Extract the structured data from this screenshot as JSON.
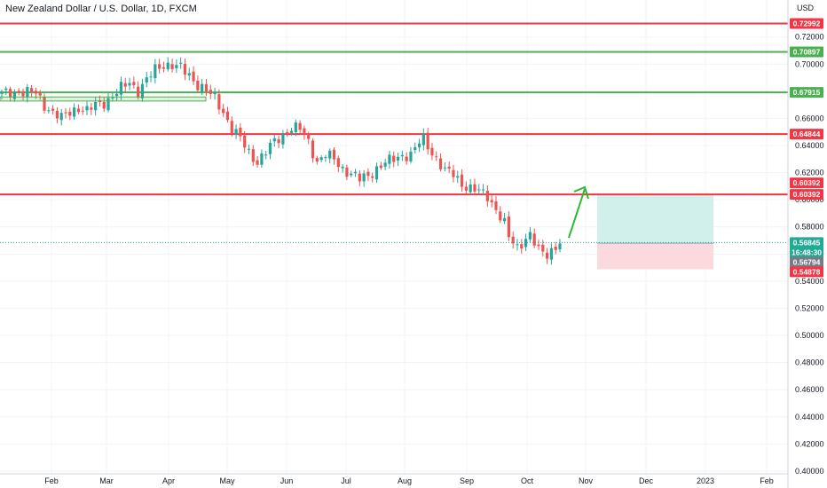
{
  "header": {
    "symbol_title": "New Zealand Dollar / U.S. Dollar, 1D, FXCM",
    "currency": "USD"
  },
  "colors": {
    "up": "#26a69a",
    "down": "#ef5350",
    "resistance": "#f23645",
    "support": "#4caf50",
    "target_zone": "#d1f0eb",
    "stop_zone": "#fcd9dc",
    "current_price_tag": "#22ab94",
    "countdown_tag": "#131722",
    "prev_close_tag": "#787b86",
    "arrow": "#2eb82e"
  },
  "chart_data": {
    "type": "candlestick",
    "title": "New Zealand Dollar / U.S. Dollar, 1D, FXCM",
    "x_ticks": [
      "Feb",
      "Mar",
      "Apr",
      "May",
      "Jun",
      "Jul",
      "Aug",
      "Sep",
      "Oct",
      "Nov",
      "Dec",
      "2023",
      "Feb"
    ],
    "y_ticks": [
      "0.72000",
      "0.70000",
      "0.68000",
      "0.66000",
      "0.64000",
      "0.62000",
      "0.60000",
      "0.58000",
      "0.56000",
      "0.54000",
      "0.52000",
      "0.50000",
      "0.48000",
      "0.46000",
      "0.44000",
      "0.42000",
      "0.40000"
    ],
    "y_range": [
      0.398,
      0.7355
    ],
    "grid": true,
    "horizontal_levels": [
      {
        "price": 0.72992,
        "label": "0.72992",
        "kind": "resistance"
      },
      {
        "price": 0.70897,
        "label": "0.70897",
        "kind": "support"
      },
      {
        "price": 0.67915,
        "label": "0.67915",
        "kind": "support"
      },
      {
        "price": 0.64844,
        "label": "0.64844",
        "kind": "resistance"
      },
      {
        "price": 0.60392,
        "label": "0.60392",
        "kind": "resistance"
      }
    ],
    "price_tags": [
      {
        "label": "0.60392",
        "price": 0.60392,
        "kind": "level"
      },
      {
        "label": "0.56845",
        "price": 0.56845,
        "kind": "current"
      },
      {
        "label": "16:48:30",
        "price": 0.56845,
        "kind": "countdown"
      },
      {
        "label": "0.56794",
        "price": 0.56794,
        "kind": "prev_close"
      },
      {
        "label": "0.54878",
        "price": 0.54878,
        "kind": "stop"
      }
    ],
    "current_price": 0.56845,
    "long_position": {
      "entry": 0.56794,
      "target": 0.60392,
      "stop": 0.54878
    },
    "consolidation_box": {
      "low": 0.6728,
      "high": 0.6758
    },
    "series_anchors": [
      [
        0,
        0.678
      ],
      [
        4,
        0.68
      ],
      [
        6,
        0.679
      ],
      [
        8,
        0.6785
      ],
      [
        10,
        0.67
      ],
      [
        12,
        0.664
      ],
      [
        14,
        0.66
      ],
      [
        16,
        0.665
      ],
      [
        18,
        0.668
      ],
      [
        20,
        0.665
      ],
      [
        22,
        0.67
      ],
      [
        24,
        0.672
      ],
      [
        26,
        0.676
      ],
      [
        28,
        0.682
      ],
      [
        30,
        0.687
      ],
      [
        32,
        0.68
      ],
      [
        34,
        0.688
      ],
      [
        36,
        0.696
      ],
      [
        38,
        0.7
      ],
      [
        40,
        0.699
      ],
      [
        42,
        0.697
      ],
      [
        44,
        0.692
      ],
      [
        46,
        0.685
      ],
      [
        48,
        0.68
      ],
      [
        50,
        0.675
      ],
      [
        52,
        0.665
      ],
      [
        54,
        0.652
      ],
      [
        56,
        0.645
      ],
      [
        58,
        0.635
      ],
      [
        60,
        0.628
      ],
      [
        62,
        0.635
      ],
      [
        64,
        0.643
      ],
      [
        66,
        0.648
      ],
      [
        68,
        0.653
      ],
      [
        70,
        0.652
      ],
      [
        72,
        0.643
      ],
      [
        74,
        0.628
      ],
      [
        76,
        0.633
      ],
      [
        78,
        0.63
      ],
      [
        80,
        0.623
      ],
      [
        82,
        0.619
      ],
      [
        84,
        0.615
      ],
      [
        86,
        0.618
      ],
      [
        88,
        0.623
      ],
      [
        90,
        0.627
      ],
      [
        92,
        0.63
      ],
      [
        94,
        0.633
      ],
      [
        96,
        0.633
      ],
      [
        98,
        0.642
      ],
      [
        99,
        0.645
      ],
      [
        102,
        0.63
      ],
      [
        104,
        0.621
      ],
      [
        106,
        0.619
      ],
      [
        108,
        0.612
      ],
      [
        110,
        0.608
      ],
      [
        112,
        0.606
      ],
      [
        114,
        0.603
      ],
      [
        116,
        0.593
      ],
      [
        118,
        0.582
      ],
      [
        119,
        0.572
      ],
      [
        121,
        0.565
      ],
      [
        123,
        0.572
      ],
      [
        124,
        0.574
      ],
      [
        126,
        0.562
      ],
      [
        128,
        0.56
      ],
      [
        130,
        0.566
      ],
      [
        131,
        0.5685
      ]
    ]
  }
}
